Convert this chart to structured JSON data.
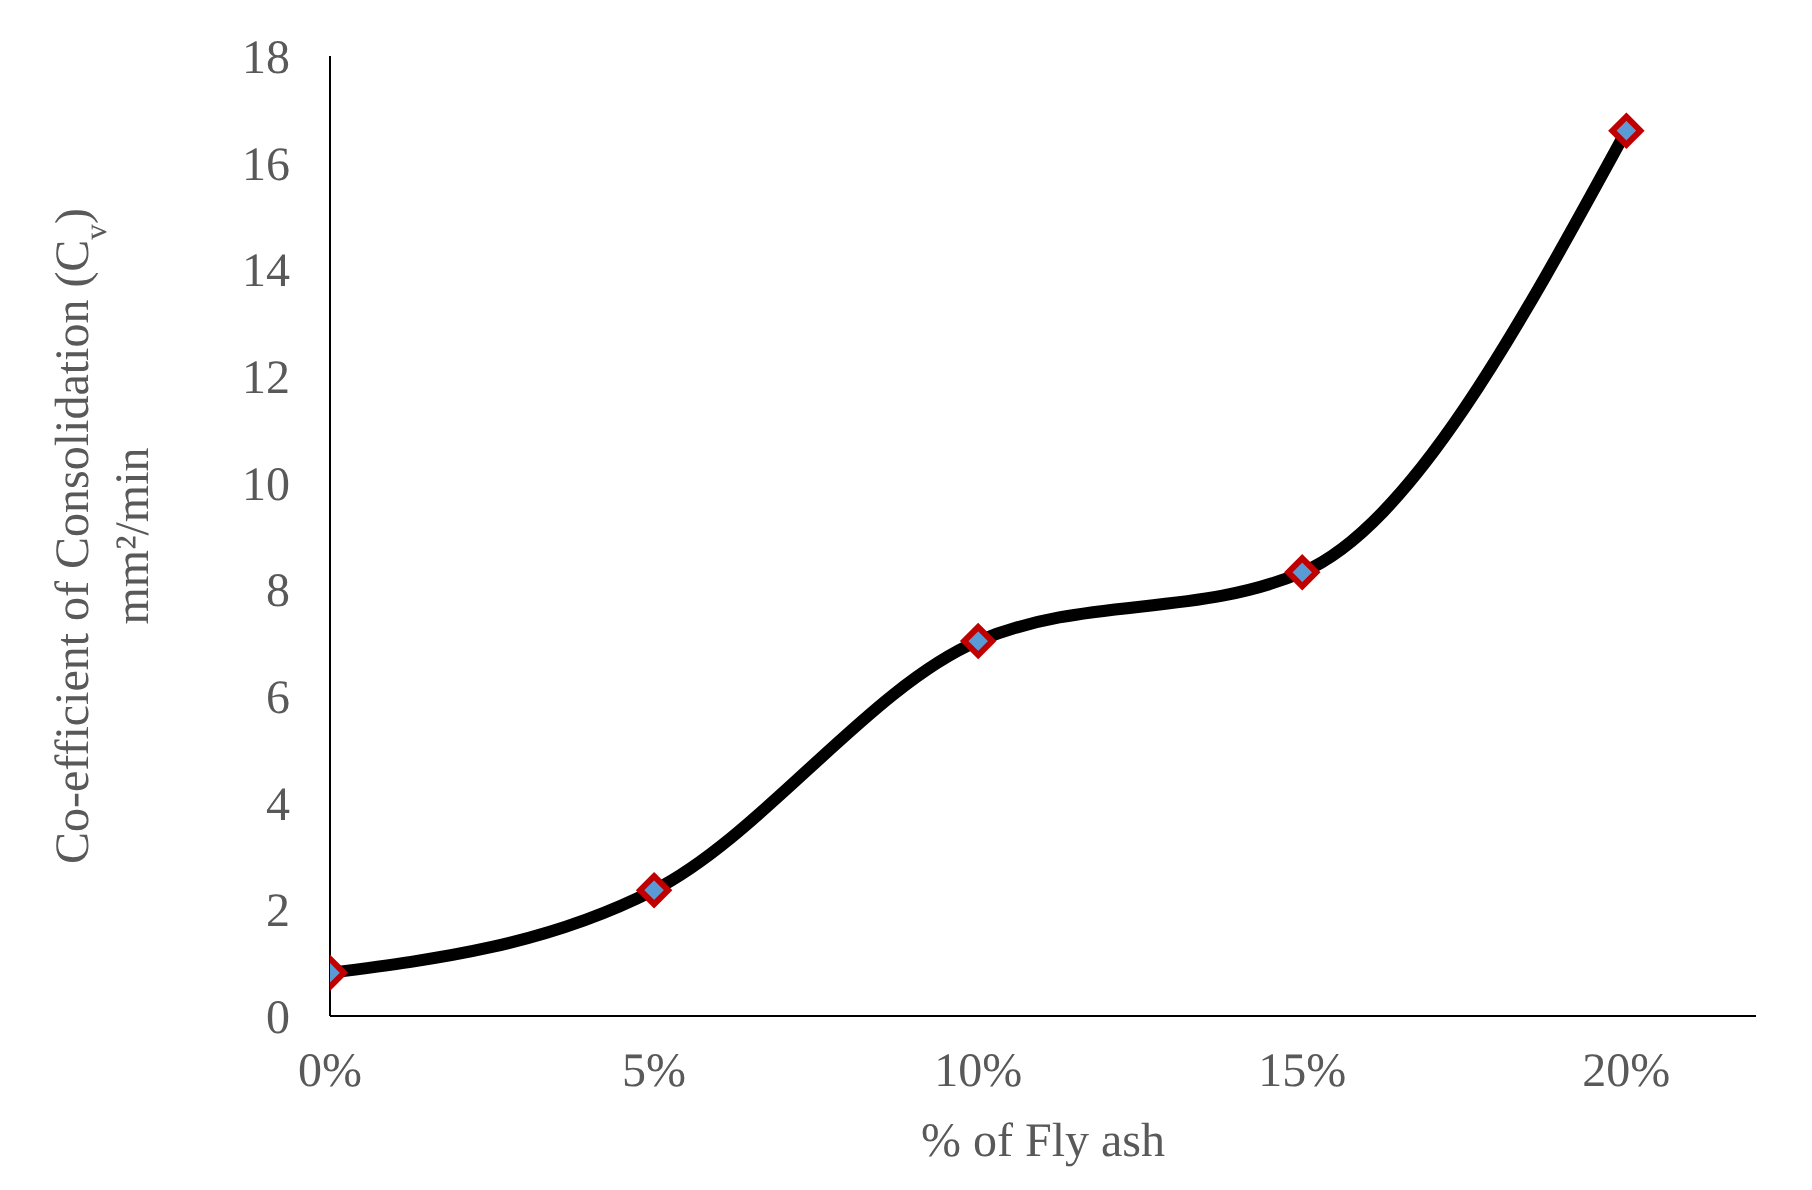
{
  "chart_data": {
    "type": "line",
    "xlabel": "% of Fly ash",
    "ylabel": "Co-efficient of Consolidation (C$_{v}$) mm²/min",
    "x": [
      0,
      5,
      10,
      15,
      20
    ],
    "series": [
      {
        "color": "#000000",
        "values": [
          0.81,
          2.36,
          7.03,
          8.32,
          16.6
        ]
      }
    ],
    "xlim": [
      0,
      22
    ],
    "xticks": [
      {
        "value": 0,
        "label": "0%"
      },
      {
        "value": 5,
        "label": "5%"
      },
      {
        "value": 10,
        "label": "10%"
      },
      {
        "value": 15,
        "label": "15%"
      },
      {
        "value": 20,
        "label": "20%"
      }
    ],
    "ylim": [
      0,
      18
    ],
    "yticks": [
      0,
      2,
      4,
      6,
      8,
      10,
      12,
      14,
      16,
      18
    ],
    "grid": false,
    "marker": "diamond",
    "line_style": "solid"
  }
}
